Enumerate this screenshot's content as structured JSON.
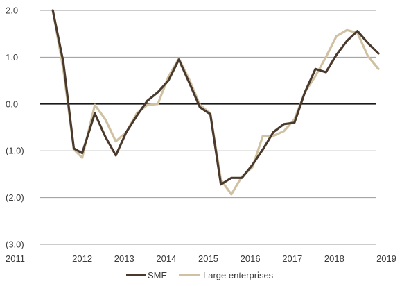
{
  "chart_data": {
    "type": "line",
    "title": "",
    "xlabel": "",
    "ylabel": "",
    "xlim": [
      2011,
      2019
    ],
    "ylim": [
      -3.0,
      2.0
    ],
    "x_ticks": [
      2011,
      2012,
      2013,
      2014,
      2015,
      2016,
      2017,
      2018,
      2019
    ],
    "x_tick_labels": [
      "2011",
      "2012",
      "2013",
      "2014",
      "2015",
      "2016",
      "2017",
      "2018",
      "2019"
    ],
    "y_ticks": [
      2.0,
      1.0,
      0.0,
      -1.0,
      -2.0,
      -3.0
    ],
    "y_tick_labels": [
      "2.0",
      "1.0",
      "0.0",
      "(1.0)",
      "(2.0)",
      "(3.0)"
    ],
    "grid": "horizontal",
    "legend_position": "bottom",
    "series": [
      {
        "name": "SME",
        "color": "#4a3a2e",
        "x": [
          2011.3,
          2011.55,
          2011.8,
          2012.0,
          2012.3,
          2012.55,
          2012.8,
          2013.05,
          2013.3,
          2013.55,
          2013.8,
          2014.05,
          2014.3,
          2014.55,
          2014.8,
          2015.05,
          2015.3,
          2015.55,
          2015.8,
          2016.05,
          2016.3,
          2016.55,
          2016.8,
          2017.05,
          2017.3,
          2017.55,
          2017.8,
          2018.05,
          2018.3,
          2018.55,
          2018.8,
          2019.05
        ],
        "y": [
          2.0,
          0.9,
          -0.95,
          -1.05,
          -0.2,
          -0.7,
          -1.1,
          -0.6,
          -0.25,
          0.07,
          0.25,
          0.5,
          0.95,
          0.45,
          -0.07,
          -0.22,
          -1.72,
          -1.58,
          -1.58,
          -1.3,
          -0.97,
          -0.6,
          -0.43,
          -0.4,
          0.25,
          0.75,
          0.68,
          1.05,
          1.35,
          1.56,
          1.3,
          1.08
        ]
      },
      {
        "name": "Large enterprises",
        "color": "#cfc1a1",
        "x": [
          2011.3,
          2011.55,
          2011.8,
          2012.0,
          2012.3,
          2012.55,
          2012.8,
          2013.05,
          2013.3,
          2013.55,
          2013.8,
          2014.05,
          2014.3,
          2014.55,
          2014.8,
          2015.05,
          2015.3,
          2015.55,
          2015.8,
          2016.05,
          2016.3,
          2016.55,
          2016.8,
          2017.05,
          2017.3,
          2017.55,
          2017.8,
          2018.05,
          2018.3,
          2018.55,
          2018.8,
          2019.05
        ],
        "y": [
          2.0,
          0.75,
          -0.97,
          -1.15,
          -0.02,
          -0.33,
          -0.8,
          -0.6,
          -0.2,
          -0.02,
          0.0,
          0.58,
          0.97,
          0.52,
          -0.02,
          -0.2,
          -1.62,
          -1.93,
          -1.55,
          -1.35,
          -0.68,
          -0.68,
          -0.58,
          -0.33,
          0.25,
          0.6,
          1.0,
          1.45,
          1.58,
          1.52,
          1.02,
          0.75
        ]
      }
    ]
  }
}
